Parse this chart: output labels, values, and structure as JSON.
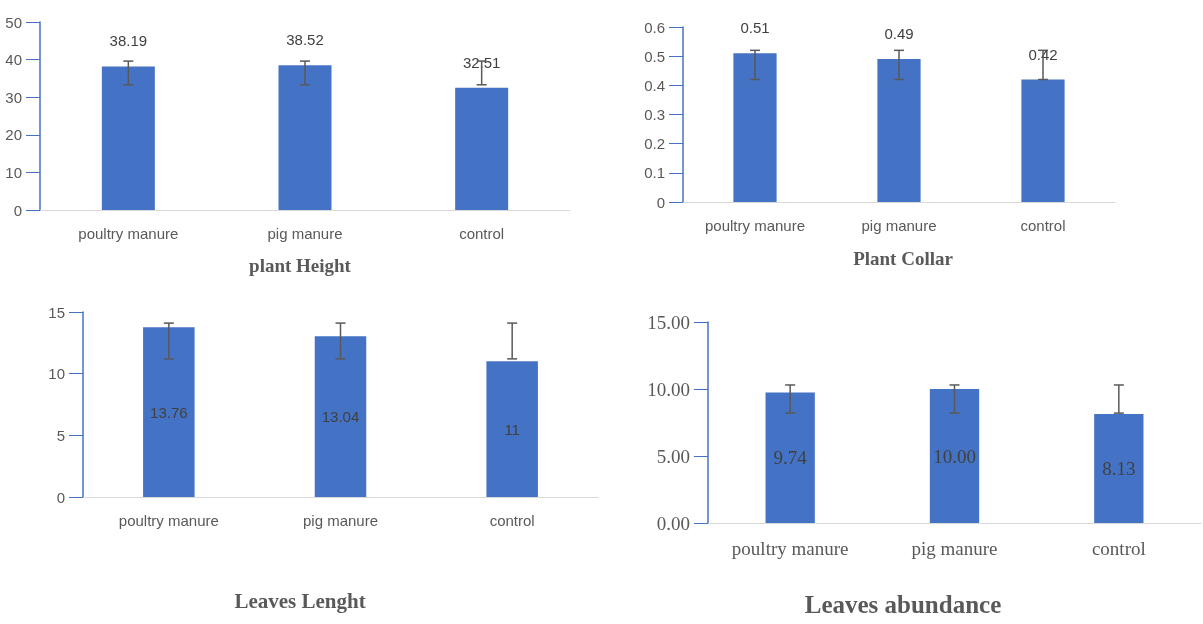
{
  "chart_data": [
    {
      "type": "bar",
      "title": "plant Height",
      "categories": [
        "poultry manure",
        "pig manure",
        "control"
      ],
      "values": [
        38.19,
        38.52,
        32.51
      ],
      "color": "#4472c4",
      "errors": [
        [
          33.3,
          39.6
        ],
        [
          33.3,
          39.6
        ],
        [
          33.3,
          39.6
        ]
      ],
      "ylim": [
        0,
        50
      ],
      "yticks": [
        0,
        10,
        20,
        30,
        40,
        50
      ],
      "data_labels": true,
      "grid": false
    },
    {
      "type": "bar",
      "title": "Plant Collar",
      "categories": [
        "poultry manure",
        "pig manure",
        "control"
      ],
      "values": [
        0.51,
        0.49,
        0.42
      ],
      "color": "#4472c4",
      "errors": [
        [
          0.42,
          0.52
        ],
        [
          0.42,
          0.52
        ],
        [
          0.42,
          0.52
        ]
      ],
      "ylim": [
        0,
        0.6
      ],
      "yticks": [
        0,
        0.1,
        0.2,
        0.3,
        0.4,
        0.5,
        0.6
      ],
      "data_labels": true,
      "grid": false
    },
    {
      "type": "bar",
      "title": "Leaves Lenght",
      "categories": [
        "poultry manure",
        "pig manure",
        "control"
      ],
      "values": [
        13.76,
        13.04,
        11
      ],
      "color": "#4472c4",
      "errors": [
        [
          11.2,
          14.1
        ],
        [
          11.2,
          14.1
        ],
        [
          11.2,
          14.1
        ]
      ],
      "ylim": [
        0,
        15
      ],
      "yticks": [
        0,
        5,
        10,
        15
      ],
      "data_labels": true,
      "grid": false
    },
    {
      "type": "bar",
      "title": "Leaves abundance",
      "categories": [
        "poultry manure",
        "pig manure",
        "control"
      ],
      "values": [
        9.74,
        10.0,
        8.13
      ],
      "value_labels": [
        "9.74",
        "10.00",
        "8.13"
      ],
      "color": "#4472c4",
      "errors": [
        [
          8.2,
          10.3
        ],
        [
          8.2,
          10.3
        ],
        [
          8.2,
          10.3
        ]
      ],
      "ylim": [
        0,
        15
      ],
      "yticks": [
        {
          "value": 0,
          "label": "0.00"
        },
        {
          "value": 5,
          "label": "5.00"
        },
        {
          "value": 10,
          "label": "10.00"
        },
        {
          "value": 15,
          "label": "15.00"
        }
      ],
      "grid": false
    }
  ]
}
